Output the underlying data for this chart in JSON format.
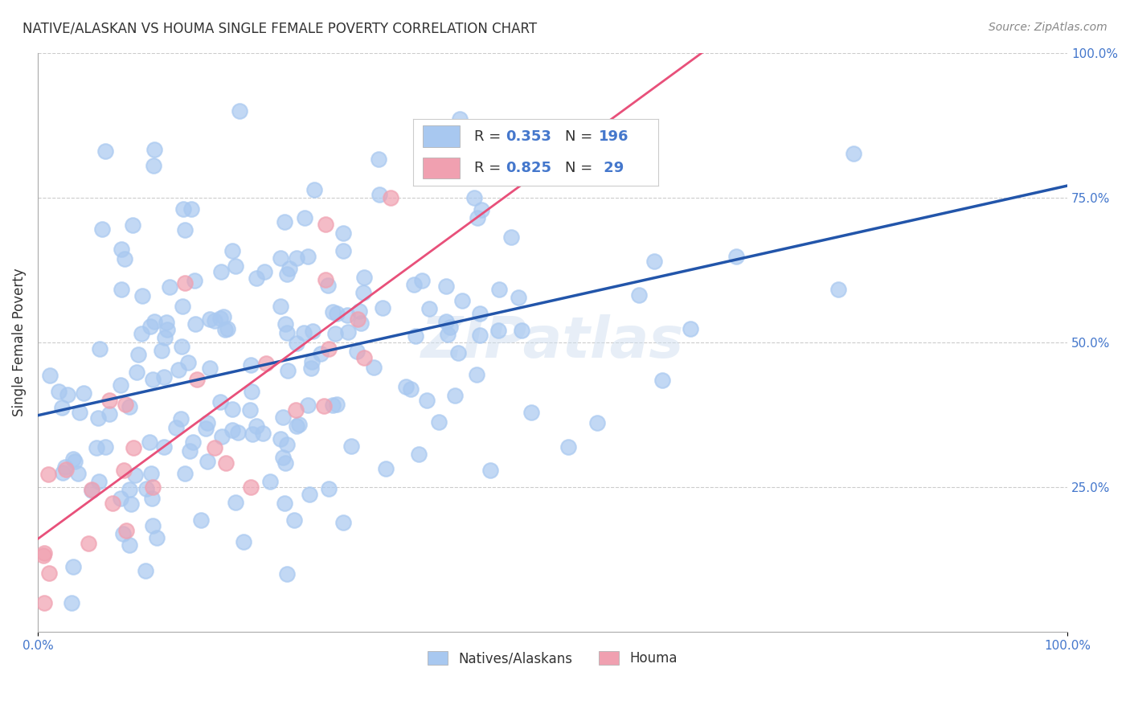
{
  "title": "NATIVE/ALASKAN VS HOUMA SINGLE FEMALE POVERTY CORRELATION CHART",
  "source": "Source: ZipAtlas.com",
  "xlabel_bottom": "",
  "ylabel": "Single Female Poverty",
  "xlim": [
    0,
    1
  ],
  "ylim": [
    0,
    1
  ],
  "x_tick_labels": [
    "0.0%",
    "100.0%"
  ],
  "y_tick_labels_right": [
    "25.0%",
    "50.0%",
    "75.0%",
    "100.0%"
  ],
  "blue_color": "#a8c8f0",
  "blue_line_color": "#2255aa",
  "pink_color": "#f0a0b0",
  "pink_line_color": "#e8507a",
  "legend_blue_r": "R = 0.353",
  "legend_blue_n": "N = 196",
  "legend_pink_r": "R = 0.825",
  "legend_pink_n": "N =  29",
  "legend_label_blue": "Natives/Alaskans",
  "legend_label_pink": "Houma",
  "watermark": "ZIPatlas",
  "blue_n": 196,
  "pink_n": 29,
  "blue_r": 0.353,
  "pink_r": 0.825,
  "blue_seed": 42,
  "pink_seed": 7,
  "title_fontsize": 12,
  "axis_color": "#4477cc",
  "background_color": "#ffffff",
  "grid_color": "#cccccc"
}
